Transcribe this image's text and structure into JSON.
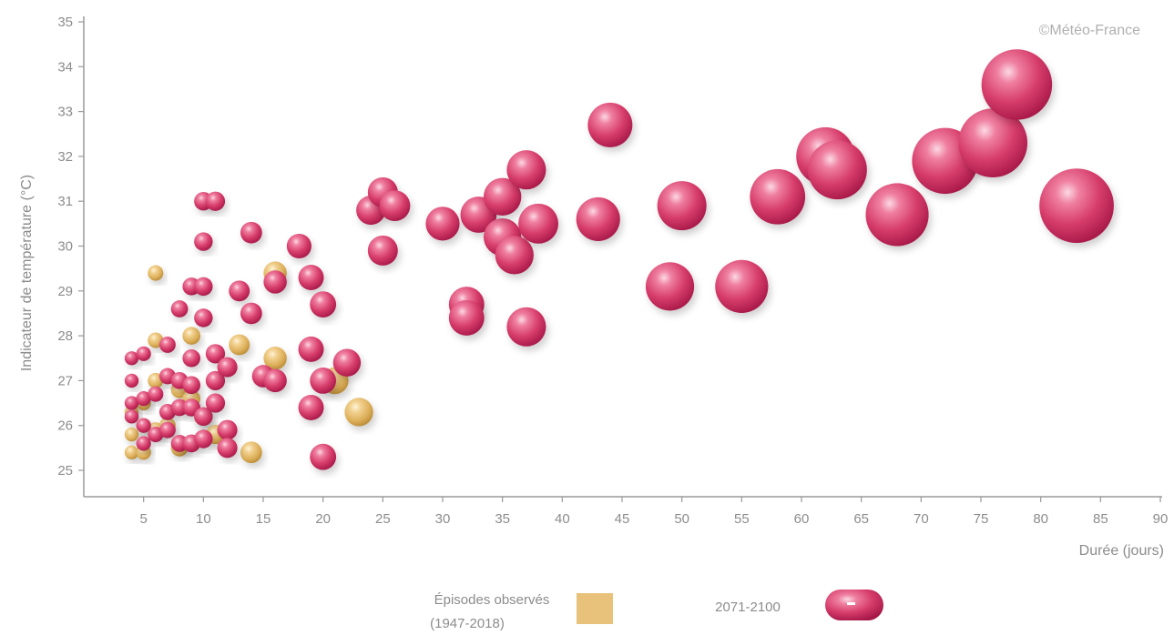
{
  "chart_data": {
    "type": "scatter",
    "title": "",
    "credit": "©Météo-France",
    "xlabel": "Durée (jours)",
    "ylabel": "Indicateur de température (°C)",
    "xlim": [
      0,
      90
    ],
    "ylim": [
      24.4,
      35.2
    ],
    "xticks": [
      "5",
      "10",
      "15",
      "20",
      "25",
      "30",
      "35",
      "40",
      "45",
      "50",
      "55",
      "60",
      "65",
      "70",
      "75",
      "80",
      "85",
      "90"
    ],
    "yticks": [
      "25",
      "26",
      "27",
      "28",
      "29",
      "30",
      "31",
      "32",
      "33",
      "34",
      "35"
    ],
    "grid": false,
    "bubble_size": "duration",
    "legend": {
      "placement": "bottom",
      "observed_line1": "Épisodes observés",
      "observed_line2": "(1947-2018)",
      "future": "2071-2100"
    },
    "series": [
      {
        "name": "Épisodes observés (1947-2018)",
        "color": "#e8c27a",
        "points": [
          [
            4,
            25.4
          ],
          [
            5,
            25.4
          ],
          [
            4,
            25.8
          ],
          [
            5,
            26.0
          ],
          [
            4,
            26.3
          ],
          [
            6,
            25.9
          ],
          [
            5,
            26.5
          ],
          [
            6,
            27.0
          ],
          [
            7,
            26.0
          ],
          [
            8,
            25.5
          ],
          [
            8,
            26.8
          ],
          [
            9,
            26.6
          ],
          [
            6,
            27.9
          ],
          [
            9,
            28.0
          ],
          [
            6,
            29.4
          ],
          [
            10,
            26.2
          ],
          [
            11,
            25.8
          ],
          [
            13,
            27.8
          ],
          [
            14,
            25.4
          ],
          [
            16,
            27.5
          ],
          [
            16,
            29.4
          ],
          [
            21,
            27.0
          ],
          [
            23,
            26.3
          ]
        ]
      },
      {
        "name": "2071-2100",
        "color": "#d63c6a",
        "points": [
          [
            4,
            27.0
          ],
          [
            4,
            27.5
          ],
          [
            4,
            26.5
          ],
          [
            4,
            26.2
          ],
          [
            5,
            27.6
          ],
          [
            5,
            26.6
          ],
          [
            5,
            26.0
          ],
          [
            5,
            25.6
          ],
          [
            6,
            25.8
          ],
          [
            6,
            26.7
          ],
          [
            7,
            27.8
          ],
          [
            7,
            27.1
          ],
          [
            7,
            26.3
          ],
          [
            7,
            25.9
          ],
          [
            8,
            27.0
          ],
          [
            8,
            26.4
          ],
          [
            8,
            25.6
          ],
          [
            8,
            28.6
          ],
          [
            9,
            27.5
          ],
          [
            9,
            26.9
          ],
          [
            9,
            26.4
          ],
          [
            9,
            25.6
          ],
          [
            9,
            29.1
          ],
          [
            10,
            28.4
          ],
          [
            10,
            29.1
          ],
          [
            10,
            26.2
          ],
          [
            10,
            25.7
          ],
          [
            10,
            31.0
          ],
          [
            10,
            30.1
          ],
          [
            11,
            27.6
          ],
          [
            11,
            27.0
          ],
          [
            11,
            26.5
          ],
          [
            11,
            31.0
          ],
          [
            12,
            27.3
          ],
          [
            12,
            25.9
          ],
          [
            12,
            25.5
          ],
          [
            13,
            29.0
          ],
          [
            14,
            28.5
          ],
          [
            14,
            30.3
          ],
          [
            15,
            27.1
          ],
          [
            16,
            27.0
          ],
          [
            16,
            29.2
          ],
          [
            18,
            30.0
          ],
          [
            19,
            27.7
          ],
          [
            19,
            26.4
          ],
          [
            19,
            29.3
          ],
          [
            20,
            28.7
          ],
          [
            20,
            27.0
          ],
          [
            20,
            25.3
          ],
          [
            22,
            27.4
          ],
          [
            24,
            30.8
          ],
          [
            25,
            29.9
          ],
          [
            25,
            31.2
          ],
          [
            26,
            30.9
          ],
          [
            30,
            30.5
          ],
          [
            32,
            28.7
          ],
          [
            32,
            28.4
          ],
          [
            33,
            30.7
          ],
          [
            35,
            30.2
          ],
          [
            36,
            29.8
          ],
          [
            35,
            31.1
          ],
          [
            37,
            31.7
          ],
          [
            38,
            30.5
          ],
          [
            37,
            28.2
          ],
          [
            43,
            30.6
          ],
          [
            44,
            32.7
          ],
          [
            49,
            29.1
          ],
          [
            50,
            30.9
          ],
          [
            55,
            29.1
          ],
          [
            58,
            31.1
          ],
          [
            63,
            31.7
          ],
          [
            62,
            32.0
          ],
          [
            68,
            30.7
          ],
          [
            72,
            31.9
          ],
          [
            76,
            32.3
          ],
          [
            78,
            33.6
          ],
          [
            83,
            30.9
          ]
        ]
      }
    ]
  }
}
